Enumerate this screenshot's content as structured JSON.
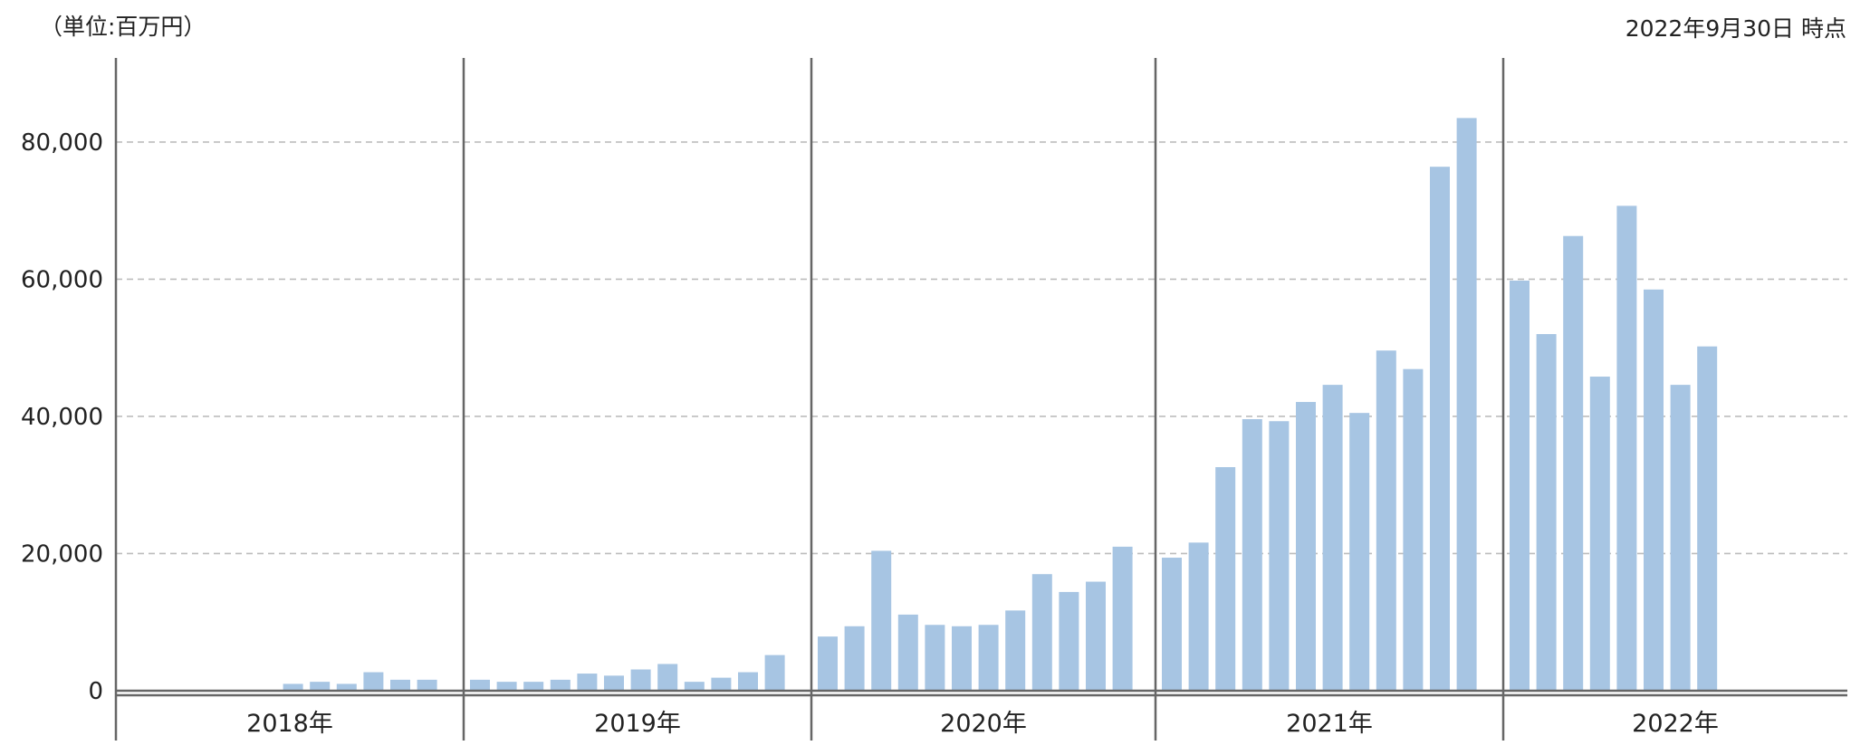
{
  "header": {
    "unit_label": "（単位:百万円）",
    "as_of_label": "2022年9月30日 時点"
  },
  "colors": {
    "bar": "#a7c5e3",
    "grid": "#bdbdbd",
    "axis": "#666666",
    "text": "#222222"
  },
  "chart_data": {
    "type": "bar",
    "title": "",
    "xlabel": "",
    "ylabel": "",
    "ylim": [
      0,
      92000
    ],
    "yticks": [
      0,
      20000,
      40000,
      60000,
      80000
    ],
    "ytick_labels": [
      "0",
      "20,000",
      "40,000",
      "60,000",
      "80,000"
    ],
    "grid": "horizontal dashed",
    "groups": [
      {
        "label": "2018年",
        "values": [
          null,
          null,
          null,
          null,
          null,
          null,
          1000,
          1300,
          1000,
          2700,
          1600,
          1600
        ]
      },
      {
        "label": "2019年",
        "values": [
          1600,
          1300,
          1300,
          1600,
          2500,
          2200,
          3100,
          3900,
          1300,
          1900,
          2700,
          5200
        ]
      },
      {
        "label": "2020年",
        "values": [
          7900,
          9400,
          20400,
          11100,
          9600,
          9400,
          9600,
          11700,
          17000,
          14400,
          15900,
          21000
        ]
      },
      {
        "label": "2021年",
        "values": [
          19400,
          21600,
          32600,
          39600,
          39300,
          42100,
          44600,
          40500,
          49600,
          46900,
          76400,
          83500
        ]
      },
      {
        "label": "2022年",
        "values": [
          59800,
          52000,
          66300,
          45800,
          70700,
          58500,
          44600,
          50200
        ]
      }
    ]
  }
}
